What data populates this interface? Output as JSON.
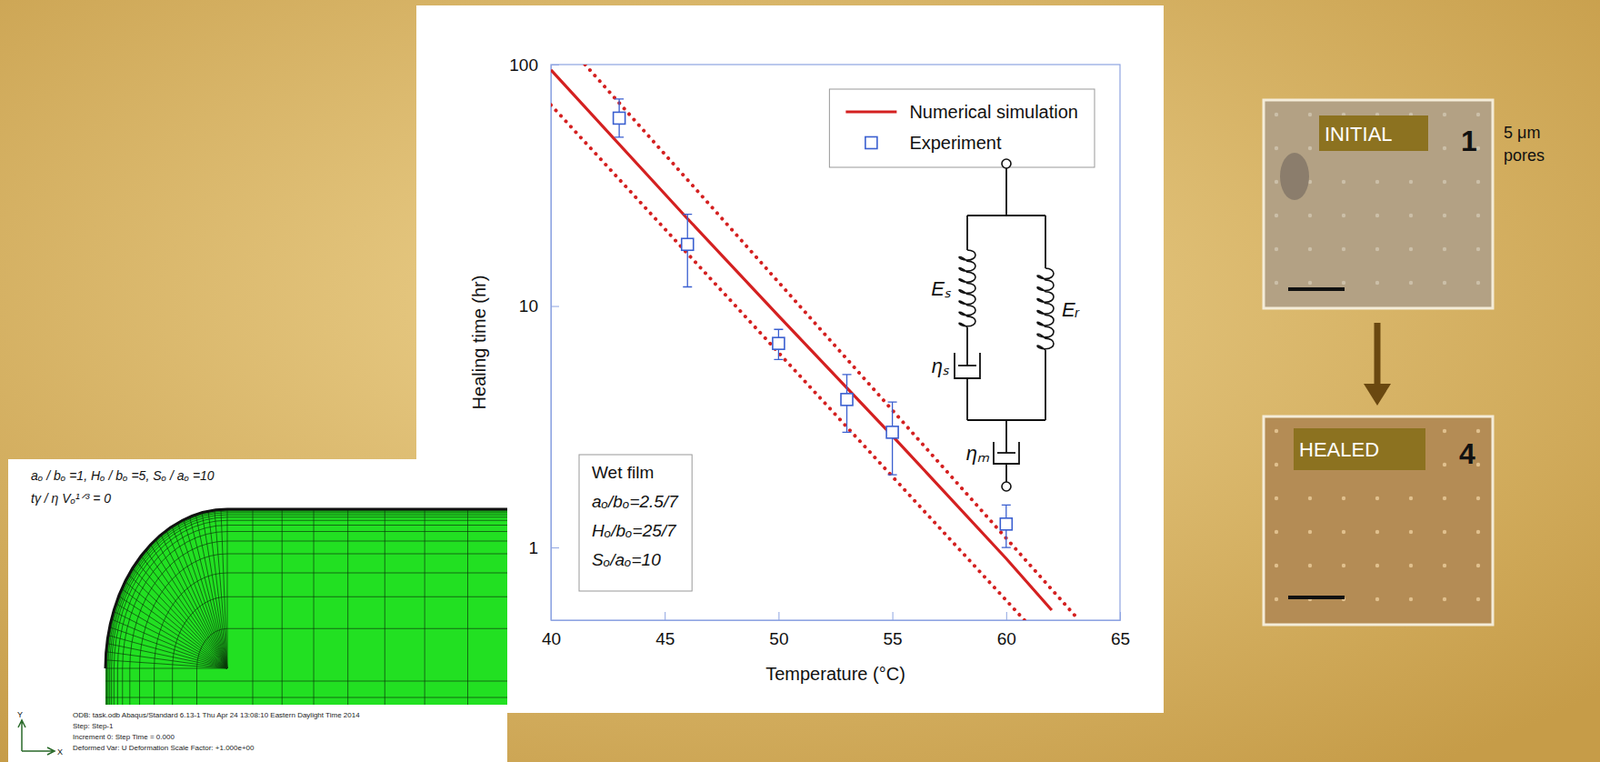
{
  "chart_data": {
    "type": "line",
    "x_label": "Temperature (°C)",
    "y_label": "Healing time (hr)",
    "log": "y",
    "xlim": [
      40,
      65
    ],
    "xticks": [
      40,
      45,
      50,
      55,
      60,
      65
    ],
    "ylim": [
      0.5,
      100
    ],
    "yticks": [
      1,
      10,
      100
    ],
    "grid": false,
    "legend": "top-right",
    "series": [
      {
        "name": "Numerical simulation",
        "type": "line",
        "color": "#d42020",
        "line_style": "solid",
        "x": [
          40,
          46,
          50,
          55,
          60,
          62
        ],
        "values": [
          95,
          23,
          9.1,
          2.9,
          0.9,
          0.55
        ]
      },
      {
        "type": "line",
        "color": "#d42020",
        "line_style": "dotted",
        "x": [
          41.5,
          63.2
        ],
        "values": [
          100,
          0.5
        ]
      },
      {
        "type": "line",
        "color": "#d42020",
        "line_style": "dotted",
        "x": [
          40,
          60.8
        ],
        "values": [
          68,
          0.5
        ]
      },
      {
        "name": "Experiment",
        "type": "scatter",
        "color": "#3a5fd0",
        "marker": "square",
        "x": [
          43,
          46,
          50,
          53,
          55,
          60
        ],
        "values": [
          60,
          18,
          7,
          4.1,
          3,
          1.25
        ],
        "error_lower": [
          50,
          12,
          6,
          3,
          2,
          1.0
        ],
        "error_upper": [
          72,
          24,
          8,
          5.2,
          4,
          1.5
        ]
      }
    ],
    "annotations": [
      "Wet film",
      "aₒ/bₒ=2.5/7",
      "Hₒ/bₒ=25/7",
      "Sₒ/aₒ=10"
    ],
    "circuit_labels": [
      "Eₛ",
      "Eᵣ",
      "ηₛ",
      "ηₘ"
    ]
  },
  "fe_inset": {
    "parameters": "aₒ / bₒ =1, Hₒ / bₒ =5, Sₒ / aₒ =10",
    "time": "tγ / η Vₒ¹ᐟ³ = 0",
    "axis_labels": [
      "X",
      "Y"
    ],
    "info_lines": [
      "ODB: task.odb    Abaqus/Standard 6.13-1    Thu Apr 24 13:08:10 Eastern Daylight Time 2014",
      "Step: Step-1",
      "Increment 0: Step Time = 0.000",
      "Deformed Var: U   Deformation Scale Factor: +1.000e+00"
    ]
  },
  "micrographs": {
    "panels": [
      {
        "label": "INITIAL",
        "number": "1"
      },
      {
        "label": "HEALED",
        "number": "4"
      }
    ],
    "note": [
      "5 μm",
      "pores"
    ]
  }
}
